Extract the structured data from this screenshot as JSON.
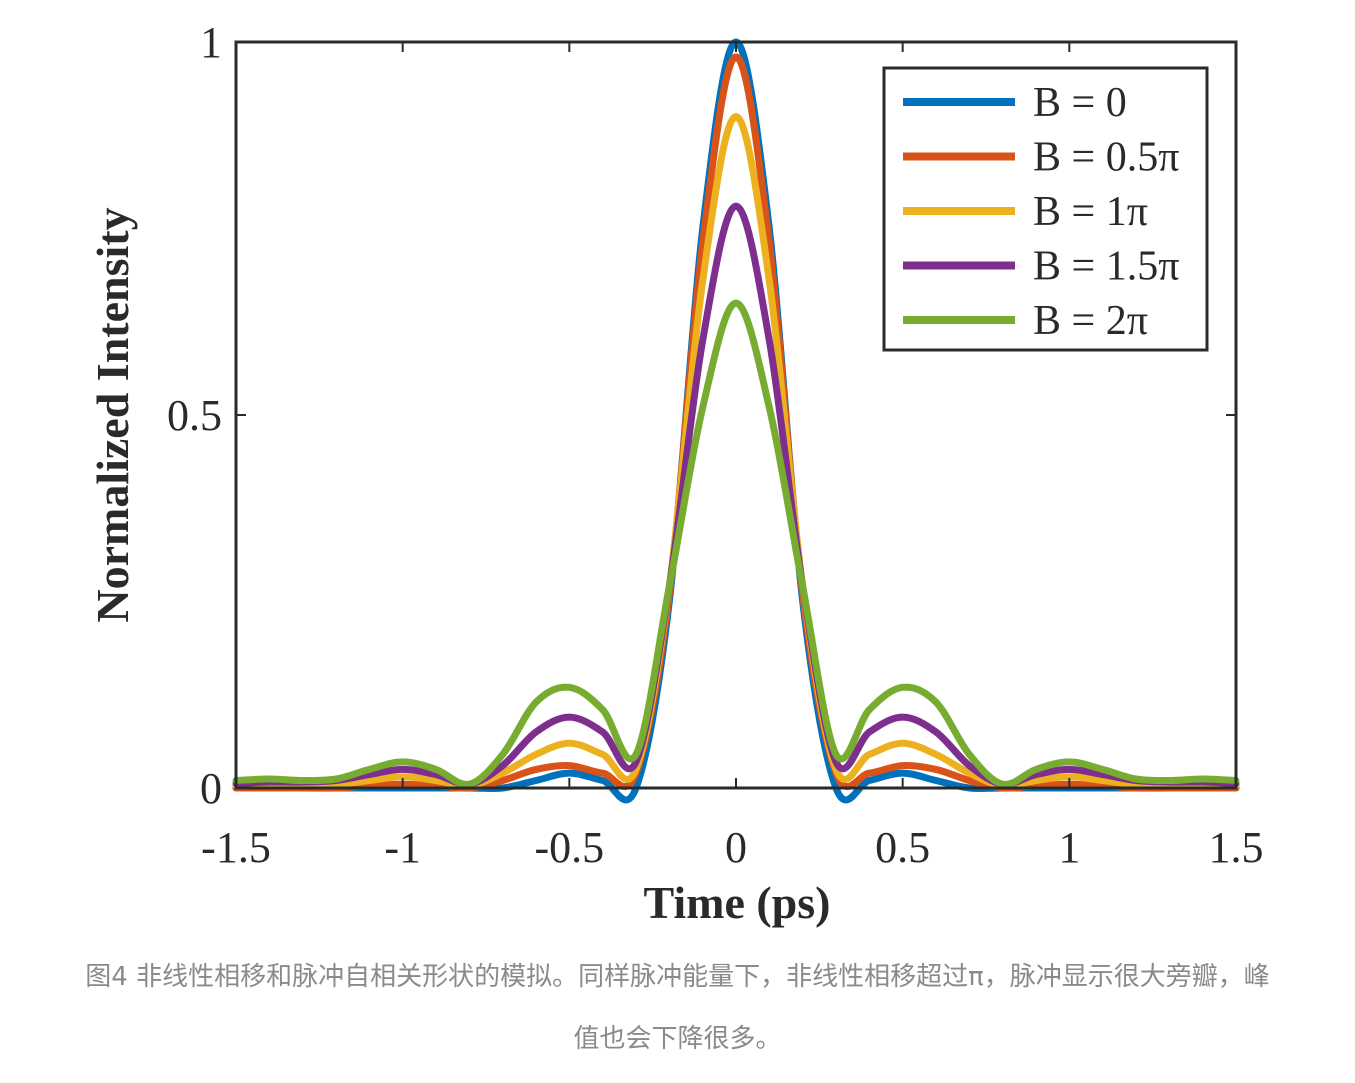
{
  "chart_data": {
    "type": "line",
    "xlabel": "Time (ps)",
    "ylabel": "Normalized Intensity",
    "xlim": [
      -1.5,
      1.5
    ],
    "ylim": [
      0,
      1
    ],
    "x_ticks": [
      "-1.5",
      "-1",
      "-0.5",
      "0",
      "0.5",
      "1",
      "1.5"
    ],
    "y_ticks": [
      "0",
      "0.5",
      "1"
    ],
    "grid": false,
    "legend_position": "top-right",
    "x": [
      -1.5,
      -1.4,
      -1.3,
      -1.2,
      -1.1,
      -1.0,
      -0.9,
      -0.8,
      -0.7,
      -0.6,
      -0.5,
      -0.4,
      -0.3,
      -0.2,
      -0.1,
      0.0,
      0.1,
      0.2,
      0.3,
      0.4,
      0.5,
      0.6,
      0.7,
      0.8,
      0.9,
      1.0,
      1.1,
      1.2,
      1.3,
      1.4,
      1.5
    ],
    "series": [
      {
        "name": "B = 0",
        "color": "#0072BD",
        "values": [
          0.0,
          0.0,
          0.0,
          0.0,
          0.0,
          0.0,
          0.0,
          0.0,
          0.0,
          0.01,
          0.02,
          0.01,
          0.0,
          0.25,
          0.75,
          1.0,
          0.75,
          0.25,
          0.0,
          0.01,
          0.02,
          0.01,
          0.0,
          0.0,
          0.0,
          0.0,
          0.0,
          0.0,
          0.0,
          0.0,
          0.0
        ]
      },
      {
        "name": "B = 0.5π",
        "color": "#D95319",
        "values": [
          0.0,
          0.0,
          0.0,
          0.0,
          0.003,
          0.005,
          0.003,
          0.0,
          0.01,
          0.025,
          0.03,
          0.02,
          0.02,
          0.26,
          0.73,
          0.98,
          0.73,
          0.26,
          0.02,
          0.02,
          0.03,
          0.025,
          0.01,
          0.0,
          0.003,
          0.005,
          0.003,
          0.0,
          0.0,
          0.0,
          0.0
        ]
      },
      {
        "name": "B = 1π",
        "color": "#EDB120",
        "values": [
          0.003,
          0.003,
          0.003,
          0.005,
          0.01,
          0.015,
          0.01,
          0.003,
          0.02,
          0.045,
          0.06,
          0.045,
          0.025,
          0.27,
          0.68,
          0.9,
          0.68,
          0.27,
          0.025,
          0.045,
          0.06,
          0.045,
          0.02,
          0.003,
          0.01,
          0.015,
          0.01,
          0.005,
          0.003,
          0.003,
          0.003
        ]
      },
      {
        "name": "B = 1.5π",
        "color": "#7E2F8E",
        "values": [
          0.006,
          0.008,
          0.008,
          0.01,
          0.018,
          0.025,
          0.018,
          0.005,
          0.03,
          0.075,
          0.095,
          0.075,
          0.035,
          0.27,
          0.6,
          0.78,
          0.6,
          0.27,
          0.035,
          0.075,
          0.095,
          0.075,
          0.03,
          0.005,
          0.018,
          0.025,
          0.018,
          0.01,
          0.008,
          0.008,
          0.006
        ]
      },
      {
        "name": "B = 2π",
        "color": "#77AC30",
        "values": [
          0.01,
          0.012,
          0.01,
          0.012,
          0.025,
          0.035,
          0.025,
          0.005,
          0.045,
          0.115,
          0.135,
          0.105,
          0.045,
          0.27,
          0.51,
          0.65,
          0.51,
          0.27,
          0.045,
          0.105,
          0.135,
          0.115,
          0.045,
          0.005,
          0.025,
          0.035,
          0.025,
          0.012,
          0.01,
          0.012,
          0.01
        ]
      }
    ]
  },
  "caption": {
    "line1": "图4 非线性相移和脉冲自相关形状的模拟。同样脉冲能量下，非线性相移超过π，脉冲显示很大旁瓣，峰",
    "line2": "值也会下降很多。"
  }
}
